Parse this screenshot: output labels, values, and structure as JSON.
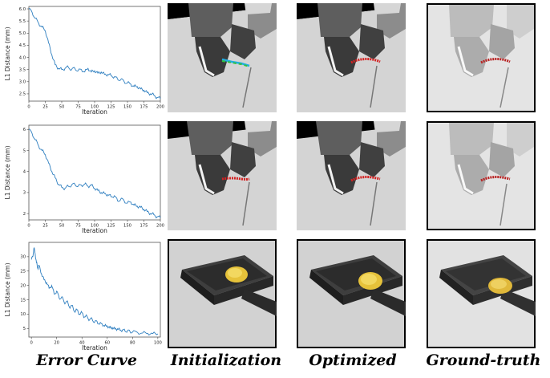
{
  "column_labels": [
    "Error Curve",
    "Initialization",
    "Optimized",
    "Ground-truth"
  ],
  "chart_data": [
    {
      "type": "line",
      "ylabel": "L1 Distance (mm)",
      "xlabel": "Iteration",
      "xlim": [
        0,
        200
      ],
      "ylim": [
        2.2,
        6.1
      ],
      "x_ticks": [
        0,
        25,
        50,
        75,
        100,
        125,
        150,
        175,
        200
      ],
      "y_ticks": [
        2.5,
        3.0,
        3.5,
        4.0,
        4.5,
        5.0,
        5.5,
        6.0
      ],
      "x_tick_labels": [
        "0",
        "25",
        "50",
        "75",
        "100",
        "125",
        "150",
        "175",
        "200"
      ],
      "y_tick_labels": [
        "2.5",
        "3.0",
        "3.5",
        "4.0",
        "4.5",
        "5.0",
        "5.5",
        "6.0"
      ],
      "color": "#2f7fc0",
      "series": [
        {
          "x": [
            0,
            5,
            10,
            15,
            20,
            25,
            30,
            35,
            40,
            45,
            50,
            55,
            60,
            65,
            70,
            75,
            80,
            85,
            90,
            95,
            100,
            105,
            110,
            115,
            120,
            125,
            130,
            135,
            140,
            145,
            150,
            155,
            160,
            165,
            170,
            175,
            180,
            185,
            190,
            195,
            200
          ],
          "values": [
            6.0,
            5.85,
            5.6,
            5.4,
            5.25,
            5.1,
            4.6,
            4.1,
            3.7,
            3.55,
            3.5,
            3.55,
            3.6,
            3.5,
            3.55,
            3.45,
            3.5,
            3.4,
            3.55,
            3.4,
            3.45,
            3.35,
            3.4,
            3.3,
            3.3,
            3.25,
            3.2,
            3.1,
            3.1,
            3.0,
            2.95,
            2.9,
            2.8,
            2.8,
            2.7,
            2.65,
            2.55,
            2.5,
            2.45,
            2.35,
            2.3
          ]
        }
      ]
    },
    {
      "type": "line",
      "ylabel": "L1 Distance (mm)",
      "xlabel": "Iteration",
      "xlim": [
        0,
        200
      ],
      "ylim": [
        1.7,
        6.2
      ],
      "x_ticks": [
        0,
        25,
        50,
        75,
        100,
        125,
        150,
        175,
        200
      ],
      "y_ticks": [
        2,
        3,
        4,
        5,
        6
      ],
      "x_tick_labels": [
        "0",
        "25",
        "50",
        "75",
        "100",
        "125",
        "150",
        "175",
        "200"
      ],
      "y_tick_labels": [
        "2",
        "3",
        "4",
        "5",
        "6"
      ],
      "color": "#2f7fc0",
      "series": [
        {
          "x": [
            0,
            5,
            10,
            15,
            20,
            25,
            30,
            35,
            40,
            45,
            50,
            55,
            60,
            65,
            70,
            75,
            80,
            85,
            90,
            95,
            100,
            105,
            110,
            115,
            120,
            125,
            130,
            135,
            140,
            145,
            150,
            155,
            160,
            165,
            170,
            175,
            180,
            185,
            190,
            195,
            200
          ],
          "values": [
            6.0,
            5.8,
            5.5,
            5.2,
            5.0,
            4.8,
            4.4,
            4.0,
            3.7,
            3.4,
            3.25,
            3.2,
            3.3,
            3.35,
            3.4,
            3.3,
            3.35,
            3.4,
            3.3,
            3.35,
            3.2,
            3.1,
            3.0,
            2.95,
            2.9,
            2.8,
            2.85,
            2.6,
            2.7,
            2.6,
            2.5,
            2.55,
            2.4,
            2.35,
            2.3,
            2.2,
            2.1,
            2.0,
            1.95,
            1.85,
            1.8
          ]
        }
      ]
    },
    {
      "type": "line",
      "ylabel": "L1 Distance (mm)",
      "xlabel": "Iteration",
      "xlim": [
        -2,
        102
      ],
      "ylim": [
        2,
        35
      ],
      "x_ticks": [
        0,
        20,
        40,
        60,
        80,
        100
      ],
      "y_ticks": [
        5,
        10,
        15,
        20,
        25,
        30
      ],
      "x_tick_labels": [
        "0",
        "20",
        "40",
        "60",
        "80",
        "100"
      ],
      "y_tick_labels": [
        "5",
        "10",
        "15",
        "20",
        "25",
        "30"
      ],
      "color": "#2f7fc0",
      "series": [
        {
          "x": [
            0,
            1,
            2,
            3,
            4,
            5,
            6,
            8,
            10,
            12,
            14,
            16,
            18,
            20,
            22,
            24,
            26,
            28,
            30,
            32,
            34,
            36,
            38,
            40,
            42,
            44,
            46,
            48,
            50,
            52,
            54,
            56,
            58,
            60,
            62,
            64,
            66,
            68,
            70,
            72,
            74,
            76,
            78,
            80,
            84,
            88,
            92,
            96,
            100
          ],
          "values": [
            29,
            30,
            33,
            31,
            28,
            26,
            27,
            24,
            22,
            21,
            19,
            20,
            17,
            18,
            15.5,
            16,
            14,
            14.5,
            12.5,
            13,
            11,
            11.5,
            10,
            10.5,
            9,
            9.2,
            8,
            8.3,
            7.2,
            7.4,
            6.5,
            6.6,
            5.8,
            5.9,
            5.2,
            5.3,
            4.8,
            4.9,
            4.4,
            4.5,
            4.1,
            4.2,
            3.9,
            3.8,
            3.6,
            3.4,
            3.3,
            3.2,
            3.1
          ]
        }
      ]
    }
  ]
}
